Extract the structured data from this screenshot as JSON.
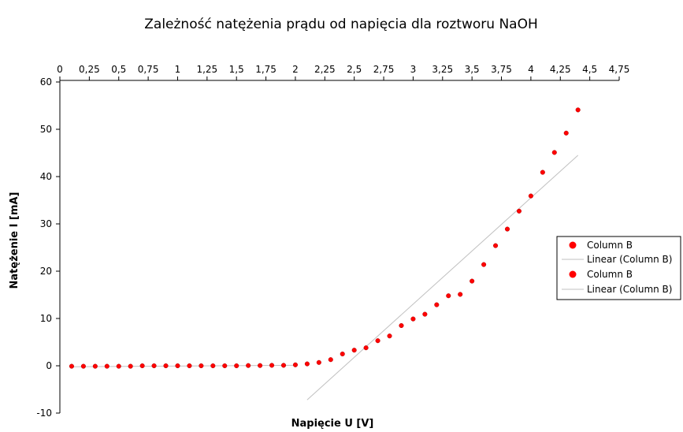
{
  "chart_data": {
    "type": "scatter",
    "title": "Zależność natężenia prądu od napięcia dla roztworu NaOH",
    "xlabel": "Napięcie U [V]",
    "ylabel": "Natężenie I [mA]",
    "xlim": [
      0,
      4.75
    ],
    "ylim": [
      -10,
      60
    ],
    "x_ticks": [
      "0",
      "0,25",
      "0,5",
      "0,75",
      "1",
      "1,25",
      "1,5",
      "1,75",
      "2",
      "2,25",
      "2,5",
      "2,75",
      "3",
      "3,25",
      "3,5",
      "3,75",
      "4",
      "4,25",
      "4,5",
      "4,75"
    ],
    "y_ticks": [
      "-10",
      "0",
      "10",
      "20",
      "30",
      "40",
      "50",
      "60"
    ],
    "grid": false,
    "legend_position": "right",
    "legend": [
      "Column B",
      "Linear (Column B)",
      "Column B",
      "Linear (Column B)"
    ],
    "colors": {
      "points": "#ff0000",
      "point_edge": "#b40000",
      "trend": "#c0c0c0"
    },
    "series": [
      {
        "name": "Column B",
        "x": [
          0.1,
          0.2,
          0.3,
          0.4,
          0.5,
          0.6,
          0.7,
          0.8,
          0.9,
          1.0,
          1.1,
          1.2,
          1.3,
          1.4,
          1.5,
          1.6,
          1.7,
          1.8,
          1.9,
          2.0,
          2.1,
          2.2,
          2.3,
          2.4,
          2.5,
          2.6,
          2.7,
          2.8,
          2.9,
          3.0,
          3.1,
          3.2,
          3.3,
          3.4,
          3.5,
          3.6,
          3.7,
          3.8,
          3.9,
          4.0,
          4.1,
          4.2,
          4.3,
          4.4
        ],
        "y": [
          -0.1,
          -0.1,
          -0.1,
          -0.1,
          -0.1,
          -0.1,
          0.0,
          0.0,
          0.0,
          0.0,
          0.0,
          0.0,
          0.0,
          0.0,
          0.0,
          0.05,
          0.05,
          0.1,
          0.1,
          0.2,
          0.4,
          0.7,
          1.3,
          2.5,
          3.3,
          3.8,
          5.3,
          6.3,
          8.5,
          9.9,
          10.9,
          12.9,
          14.8,
          15.1,
          17.9,
          21.4,
          25.4,
          28.9,
          32.7,
          35.9,
          40.9,
          45.1,
          49.2,
          54.1
        ]
      }
    ],
    "trendline": {
      "name": "Linear (Column B)",
      "x": [
        2.1,
        4.4
      ],
      "y": [
        -7.2,
        44.5
      ]
    }
  }
}
